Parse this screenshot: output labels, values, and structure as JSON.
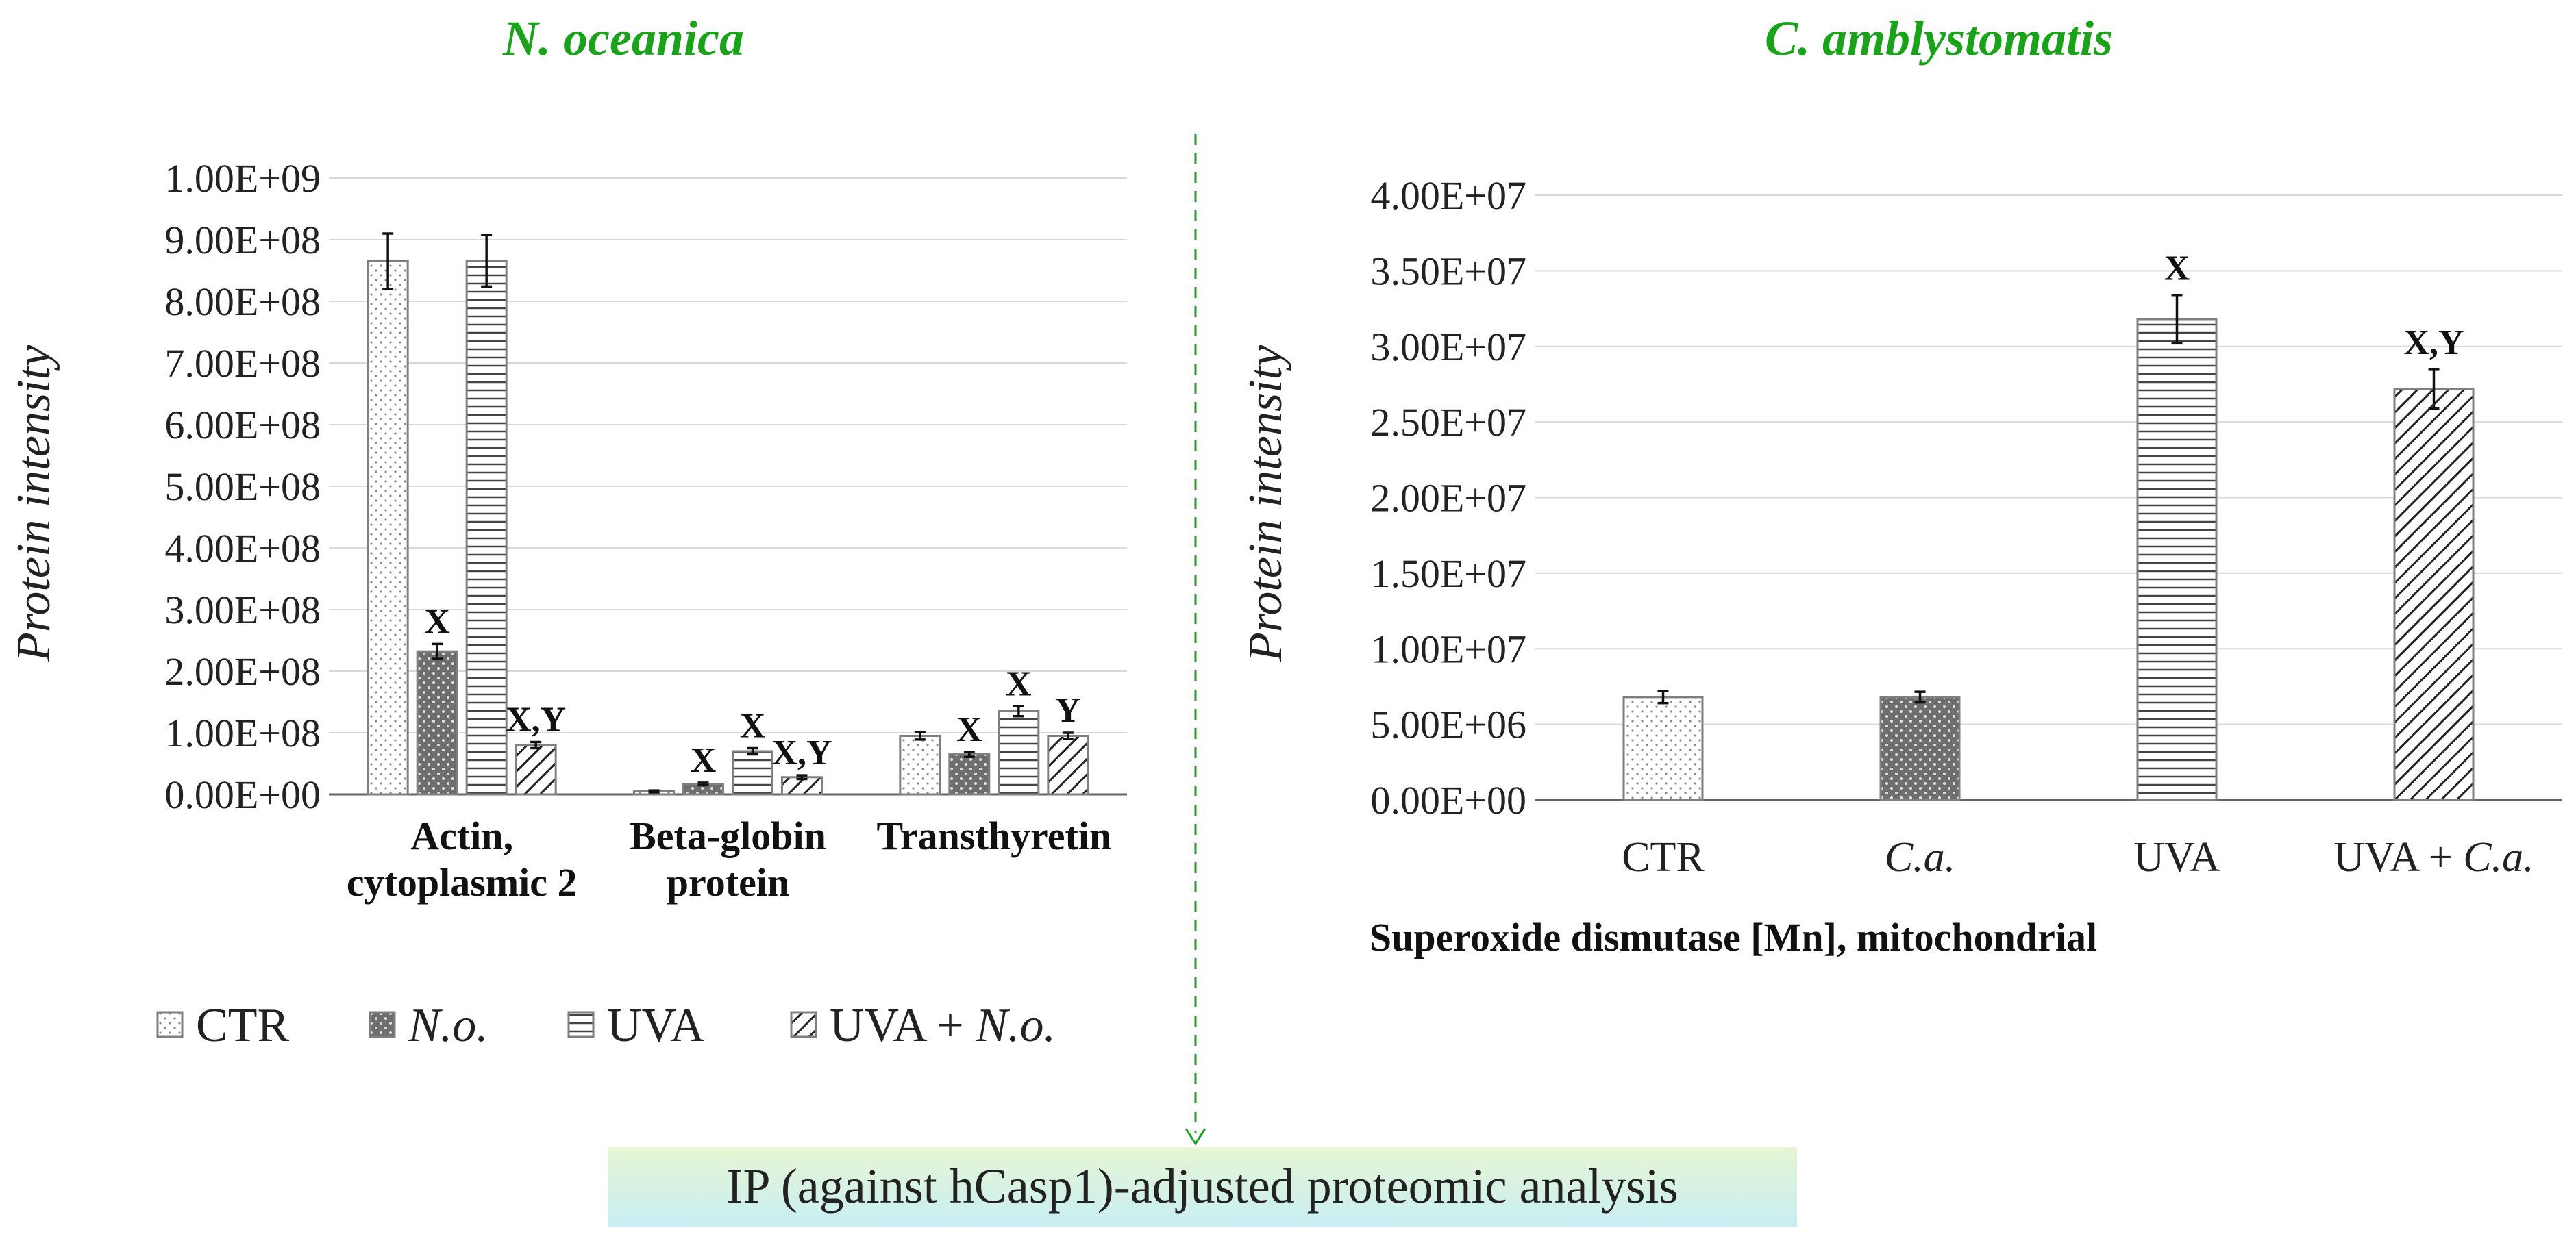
{
  "chart_data": [
    {
      "type": "bar",
      "title": "N. oceanica",
      "xlabel": "",
      "ylabel": "Protein intensity",
      "ylim": [
        0,
        1000000000
      ],
      "yticks": [
        "0.00E+00",
        "1.00E+08",
        "2.00E+08",
        "3.00E+08",
        "4.00E+08",
        "5.00E+08",
        "6.00E+08",
        "7.00E+08",
        "8.00E+08",
        "9.00E+08",
        "1.00E+09"
      ],
      "categories": [
        [
          "Actin,",
          "cytoplasmic 2"
        ],
        [
          "Beta-globin",
          "protein"
        ],
        [
          "Transthyretin"
        ]
      ],
      "series": [
        {
          "name": "CTR",
          "name_parts": [
            "CTR"
          ],
          "pattern": "dots",
          "values": [
            865000000,
            5000000,
            95000000
          ],
          "errors": [
            45000000,
            1500000,
            6000000
          ],
          "labels": [
            "",
            "",
            ""
          ]
        },
        {
          "name": "N.o.",
          "name_parts": [
            "",
            "N.o."
          ],
          "pattern": "darkdots",
          "values": [
            232000000,
            17000000,
            65000000
          ],
          "errors": [
            12000000,
            2000000,
            4000000
          ],
          "labels": [
            "X",
            "X",
            "X"
          ]
        },
        {
          "name": "UVA",
          "name_parts": [
            "UVA"
          ],
          "pattern": "hlines",
          "values": [
            866000000,
            70000000,
            135000000
          ],
          "errors": [
            42000000,
            5000000,
            8000000
          ],
          "labels": [
            "",
            "X",
            "X"
          ]
        },
        {
          "name": "UVA + N.o.",
          "name_parts": [
            "UVA + ",
            "N.o."
          ],
          "pattern": "diag",
          "values": [
            80000000,
            28000000,
            95000000
          ],
          "errors": [
            5000000,
            3000000,
            5000000
          ],
          "labels": [
            "X,Y",
            "X,Y",
            "Y"
          ]
        }
      ]
    },
    {
      "type": "bar",
      "title": "C. amblystomatis",
      "xlabel": "Superoxide dismutase [Mn], mitochondrial",
      "ylabel": "Protein intensity",
      "ylim": [
        0,
        40000000
      ],
      "yticks": [
        "0.00E+00",
        "5.00E+06",
        "1.00E+07",
        "1.50E+07",
        "2.00E+07",
        "2.50E+07",
        "3.00E+07",
        "3.50E+07",
        "4.00E+07"
      ],
      "categories": [
        [
          "CTR"
        ],
        [
          "",
          "C.a."
        ],
        [
          "UVA"
        ],
        [
          "UVA + ",
          "C.a."
        ]
      ],
      "patterns": [
        "dots",
        "darkdots",
        "hlines",
        "diag"
      ],
      "values": [
        6800000,
        6800000,
        31800000,
        27200000
      ],
      "errors": [
        400000,
        350000,
        1600000,
        1300000
      ],
      "labels": [
        "",
        "",
        "X",
        "X,Y"
      ]
    }
  ],
  "divider": {
    "color": "#1aa31a"
  },
  "banner": {
    "text": "IP (against hCasp1)-adjusted proteomic analysis",
    "color_top": "#e7f6d3",
    "color_bottom": "#c8eef4"
  }
}
